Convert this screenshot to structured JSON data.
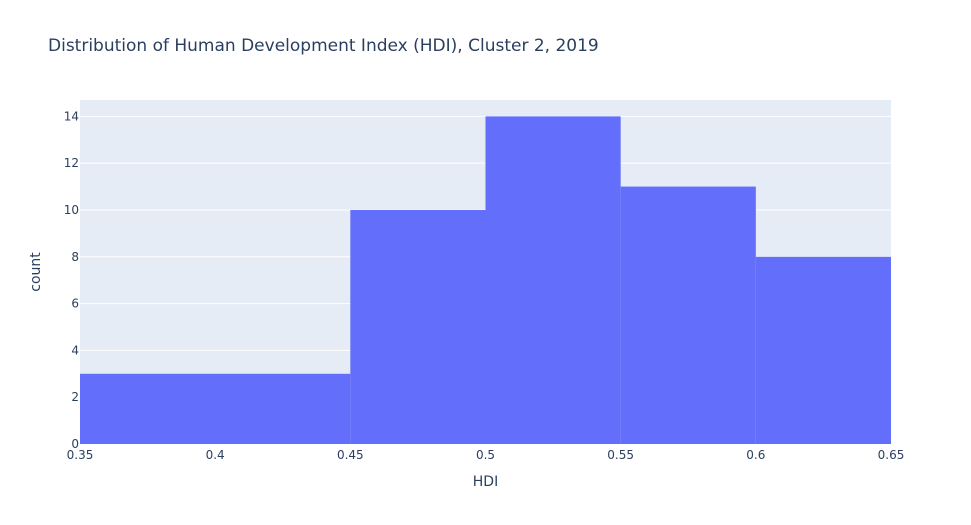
{
  "chart_data": {
    "type": "bar",
    "title": "Distribution of Human Development Index (HDI), Cluster 2, 2019",
    "xlabel": "HDI",
    "ylabel": "count",
    "bins": [
      {
        "start": 0.35,
        "end": 0.45,
        "count": 3
      },
      {
        "start": 0.45,
        "end": 0.5,
        "count": 10
      },
      {
        "start": 0.5,
        "end": 0.55,
        "count": 14
      },
      {
        "start": 0.55,
        "end": 0.6,
        "count": 11
      },
      {
        "start": 0.6,
        "end": 0.65,
        "count": 8
      }
    ],
    "xlim": [
      0.35,
      0.65
    ],
    "ylim": [
      0,
      14.7
    ],
    "x_ticks": [
      0.35,
      0.4,
      0.45,
      0.5,
      0.55,
      0.6,
      0.65
    ],
    "x_tick_labels": [
      "0.35",
      "0.4",
      "0.45",
      "0.5",
      "0.55",
      "0.6",
      "0.65"
    ],
    "y_ticks": [
      0,
      2,
      4,
      6,
      8,
      10,
      12,
      14
    ],
    "y_tick_labels": [
      "0",
      "2",
      "4",
      "6",
      "8",
      "10",
      "12",
      "14"
    ],
    "grid": true,
    "colors": {
      "bar": "#636efa",
      "plot_bg": "#e5ecf6",
      "grid": "#ffffff",
      "text": "#2a3f5f"
    }
  }
}
